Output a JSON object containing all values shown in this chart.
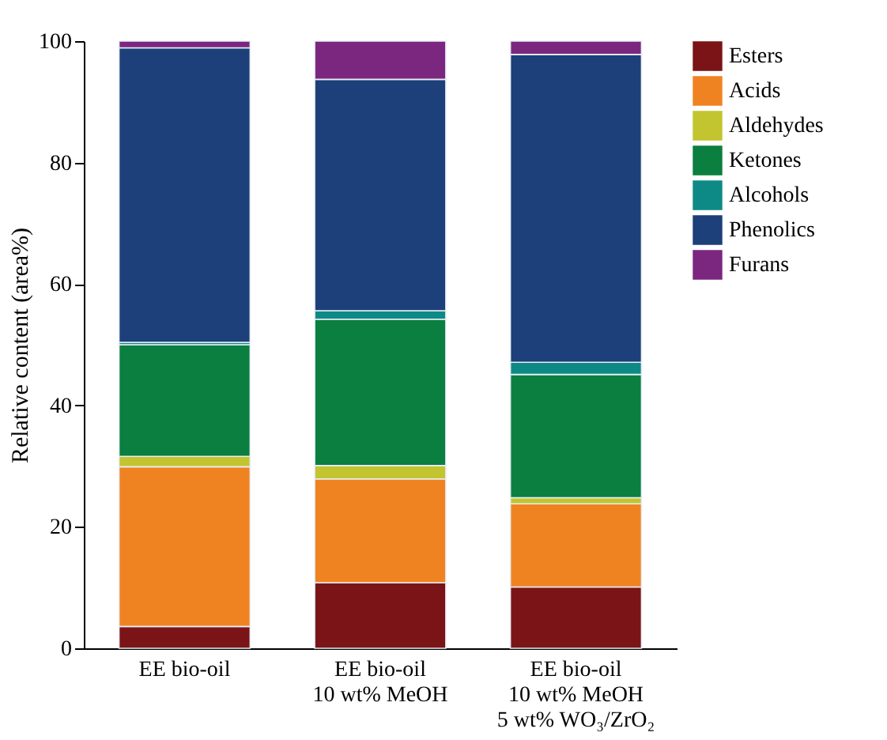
{
  "chart_data": {
    "type": "bar",
    "stacked": true,
    "ylabel": "Relative content (area%)",
    "categories": [
      "EE bio-oil",
      "EE bio-oil\n10 wt% MeOH",
      "EE bio-oil\n10 wt% MeOH\n5 wt% WO₃/ZrO₂"
    ],
    "ylim": [
      0,
      100
    ],
    "yticks": [
      0,
      20,
      40,
      60,
      80,
      100
    ],
    "grid": false,
    "legend": "top right",
    "series": [
      {
        "name": "Esters",
        "color": "#7b1416",
        "values": [
          3.6,
          10.8,
          10.1
        ]
      },
      {
        "name": "Acids",
        "color": "#f08321",
        "values": [
          26.3,
          17.1,
          13.7
        ]
      },
      {
        "name": "Aldehydes",
        "color": "#c2c52f",
        "values": [
          1.7,
          2.2,
          1.0
        ]
      },
      {
        "name": "Ketones",
        "color": "#0a7f3f",
        "values": [
          18.4,
          24.1,
          20.3
        ]
      },
      {
        "name": "Alcohols",
        "color": "#0d8a86",
        "values": [
          0.4,
          1.4,
          2.0
        ]
      },
      {
        "name": "Phenolics",
        "color": "#1d3f7a",
        "values": [
          48.5,
          38.1,
          50.7
        ]
      },
      {
        "name": "Furans",
        "color": "#7b2780",
        "values": [
          1.1,
          6.3,
          2.2
        ]
      }
    ]
  }
}
